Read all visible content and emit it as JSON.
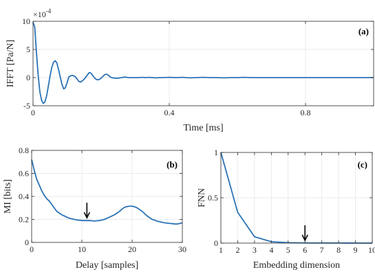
{
  "chart_data": [
    {
      "id": "a",
      "type": "line",
      "panel_label": "(a)",
      "title": "",
      "xlabel": "Time [ms]",
      "ylabel": "IFFT [Pa/N]",
      "y_multiplier": "×10",
      "y_exponent": "-4",
      "xlim": [
        0,
        1.0
      ],
      "ylim": [
        -5,
        10
      ],
      "xticks": [
        0,
        0.4,
        0.8
      ],
      "xtick_labels": [
        "0",
        "0.4",
        "0.8"
      ],
      "yticks": [
        -5,
        0,
        5,
        10
      ],
      "ytick_labels": [
        "-5",
        "0",
        "5",
        "10"
      ],
      "grid": true,
      "color": "#2a72b6",
      "series": [
        {
          "x": [
            0,
            0.005,
            0.01,
            0.015,
            0.02,
            0.025,
            0.03,
            0.035,
            0.04,
            0.045,
            0.05,
            0.055,
            0.06,
            0.065,
            0.07,
            0.075,
            0.08,
            0.085,
            0.09,
            0.095,
            0.1,
            0.105,
            0.11,
            0.115,
            0.12,
            0.125,
            0.13,
            0.135,
            0.14,
            0.15,
            0.16,
            0.165,
            0.17,
            0.175,
            0.18,
            0.185,
            0.19,
            0.195,
            0.2,
            0.205,
            0.21,
            0.215,
            0.22,
            0.225,
            0.23,
            0.24,
            0.25,
            0.26,
            0.27,
            0.28,
            0.29,
            0.3,
            0.31,
            0.32,
            0.33,
            0.34,
            0.35,
            0.36,
            0.37,
            0.38,
            0.4,
            0.42,
            0.44,
            0.46,
            0.48,
            0.5,
            0.52,
            0.54,
            0.56,
            0.58,
            0.6,
            0.62,
            0.64,
            0.66,
            0.68,
            0.7,
            0.72,
            0.74,
            0.76,
            0.78,
            0.8,
            0.82,
            0.84,
            0.86,
            0.88,
            0.9,
            0.92,
            0.94,
            0.96,
            0.98,
            1.0
          ],
          "y": [
            9.8,
            9.0,
            4.5,
            0.5,
            -2.5,
            -4.0,
            -4.6,
            -4.3,
            -3.2,
            -1.5,
            0.3,
            1.8,
            2.7,
            3.0,
            2.6,
            1.4,
            0.1,
            -1.2,
            -2.0,
            -1.8,
            -0.9,
            0.1,
            0.3,
            0.4,
            0.3,
            0.1,
            -0.3,
            -0.7,
            -0.8,
            -0.3,
            0.5,
            0.9,
            0.8,
            0.4,
            0.0,
            -0.3,
            -0.4,
            -0.3,
            -0.1,
            0.2,
            0.5,
            0.6,
            0.5,
            0.2,
            0.0,
            -0.1,
            -0.1,
            0.0,
            0.1,
            0.0,
            0.0,
            0.0,
            0.0,
            0.05,
            0.0,
            0.05,
            0.0,
            -0.05,
            0.0,
            0.0,
            0.05,
            0.0,
            0.05,
            -0.05,
            0.0,
            0.05,
            0.0,
            0.0,
            -0.05,
            0.0,
            0.0,
            0.05,
            0.0,
            0.0,
            0.0,
            0.0,
            0.0,
            0.0,
            0.0,
            0.0,
            0.0,
            0.0,
            0.0,
            0.0,
            0.0,
            0.0,
            0.0,
            0.0,
            0.0,
            0.0,
            0.0
          ]
        }
      ]
    },
    {
      "id": "b",
      "type": "line",
      "panel_label": "(b)",
      "title": "",
      "xlabel": "Delay [samples]",
      "ylabel": "MI [bits]",
      "xlim": [
        0,
        30
      ],
      "ylim": [
        0,
        0.8
      ],
      "xticks": [
        0,
        10,
        20,
        30
      ],
      "xtick_labels": [
        "0",
        "10",
        "20",
        "30"
      ],
      "yticks": [
        0,
        0.2,
        0.4,
        0.6,
        0.8
      ],
      "ytick_labels": [
        "0",
        "0.2",
        "0.4",
        "0.6",
        "0.8"
      ],
      "grid": true,
      "color": "#2a72b6",
      "arrow_at": [
        11,
        0.19
      ],
      "series": [
        {
          "x": [
            0,
            0.5,
            1,
            1.5,
            2,
            2.5,
            3,
            3.5,
            4,
            4.5,
            5,
            5.5,
            6,
            6.5,
            7,
            7.5,
            8,
            8.5,
            9,
            9.5,
            10,
            10.5,
            11,
            11.5,
            12,
            12.5,
            13,
            13.5,
            14,
            14.5,
            15,
            15.5,
            16,
            16.5,
            17,
            17.5,
            18,
            18.5,
            19,
            19.5,
            20,
            20.5,
            21,
            21.5,
            22,
            22.5,
            23,
            23.5,
            24,
            24.5,
            25,
            25.5,
            26,
            26.5,
            27,
            27.5,
            28,
            28.5,
            29,
            29.5,
            30
          ],
          "y": [
            0.72,
            0.63,
            0.55,
            0.5,
            0.45,
            0.41,
            0.38,
            0.36,
            0.33,
            0.3,
            0.27,
            0.255,
            0.24,
            0.23,
            0.22,
            0.21,
            0.205,
            0.2,
            0.195,
            0.193,
            0.19,
            0.19,
            0.19,
            0.19,
            0.188,
            0.186,
            0.188,
            0.19,
            0.195,
            0.2,
            0.21,
            0.22,
            0.23,
            0.24,
            0.255,
            0.27,
            0.29,
            0.305,
            0.312,
            0.315,
            0.315,
            0.31,
            0.3,
            0.285,
            0.27,
            0.25,
            0.23,
            0.215,
            0.2,
            0.193,
            0.185,
            0.18,
            0.175,
            0.17,
            0.168,
            0.165,
            0.163,
            0.16,
            0.16,
            0.165,
            0.17
          ]
        }
      ]
    },
    {
      "id": "c",
      "type": "line",
      "panel_label": "(c)",
      "title": "",
      "xlabel": "Embedding dimension",
      "ylabel": "FNN",
      "xlim": [
        1,
        10
      ],
      "ylim": [
        0,
        1
      ],
      "xticks": [
        1,
        2,
        3,
        4,
        5,
        6,
        7,
        8,
        9,
        10
      ],
      "xtick_labels": [
        "1",
        "2",
        "3",
        "4",
        "5",
        "6",
        "7",
        "8",
        "9",
        "10"
      ],
      "yticks": [
        0,
        0.5,
        1
      ],
      "ytick_labels": [
        "0",
        "0.5",
        "1"
      ],
      "grid": true,
      "color": "#2a72b6",
      "arrow_at": [
        6,
        0.0
      ],
      "series": [
        {
          "x": [
            1,
            2,
            3,
            4,
            5,
            6,
            7,
            8,
            9,
            10
          ],
          "y": [
            1.0,
            0.34,
            0.07,
            0.015,
            0.005,
            0.002,
            0.001,
            0.001,
            0.0,
            0.0
          ]
        }
      ]
    }
  ]
}
